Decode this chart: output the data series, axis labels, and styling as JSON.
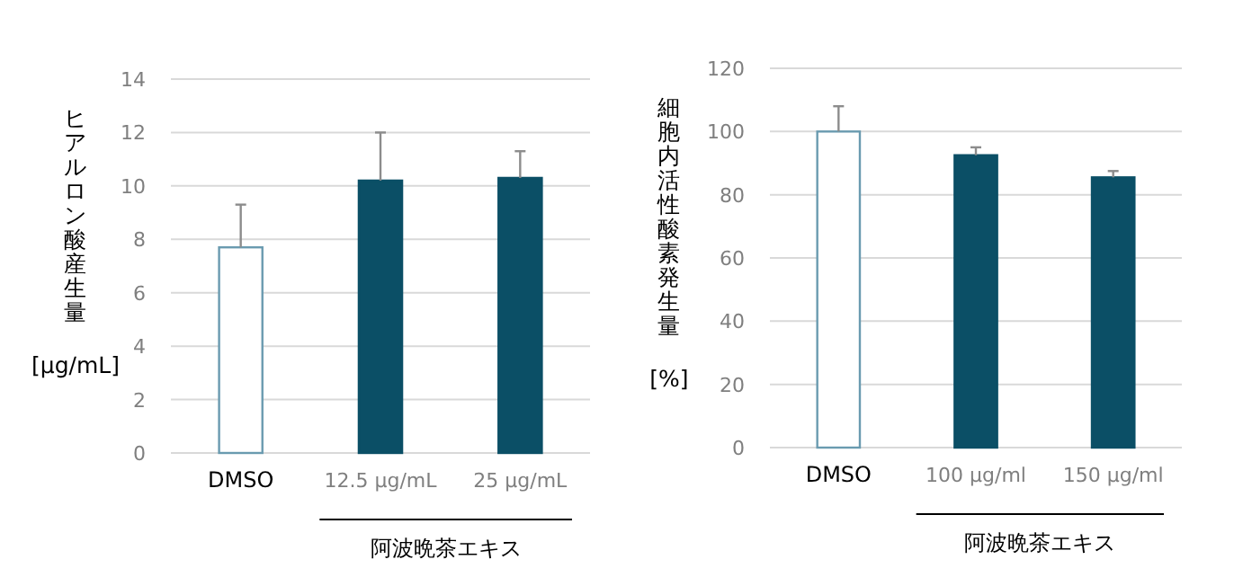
{
  "chart_data": [
    {
      "type": "bar",
      "ylabel": "ヒアルロン酸産生量 [μg/mL]",
      "categories": [
        "DMSO",
        "12.5 μg/mL",
        "25 μg/mL"
      ],
      "values": [
        7.7,
        10.2,
        10.3
      ],
      "colors": [
        "#ffffff",
        "#0b4f66",
        "#0b4f66"
      ],
      "errors": [
        [
          7.7,
          9.3
        ],
        [
          10.2,
          12.0
        ],
        [
          10.3,
          11.3
        ]
      ],
      "ylim": [
        0,
        14
      ],
      "yticks": [
        0,
        2,
        4,
        6,
        8,
        10,
        12,
        14
      ],
      "grid": "y",
      "annotations": [
        "阿波晩茶エキス"
      ]
    },
    {
      "type": "bar",
      "ylabel": "細胞内活性酸素発生量 [%]",
      "categories": [
        "DMSO",
        "100 μg/ml",
        "150 μg/ml"
      ],
      "values": [
        100,
        92.5,
        85.5
      ],
      "colors": [
        "#ffffff",
        "#0b4f66",
        "#0b4f66"
      ],
      "errors": [
        [
          100,
          108
        ],
        [
          92.5,
          95
        ],
        [
          85.5,
          87.5
        ]
      ],
      "ylim": [
        0,
        120
      ],
      "yticks": [
        0,
        20,
        40,
        60,
        80,
        100,
        120
      ],
      "grid": "y",
      "annotations": [
        "阿波晩茶エキス"
      ]
    }
  ]
}
